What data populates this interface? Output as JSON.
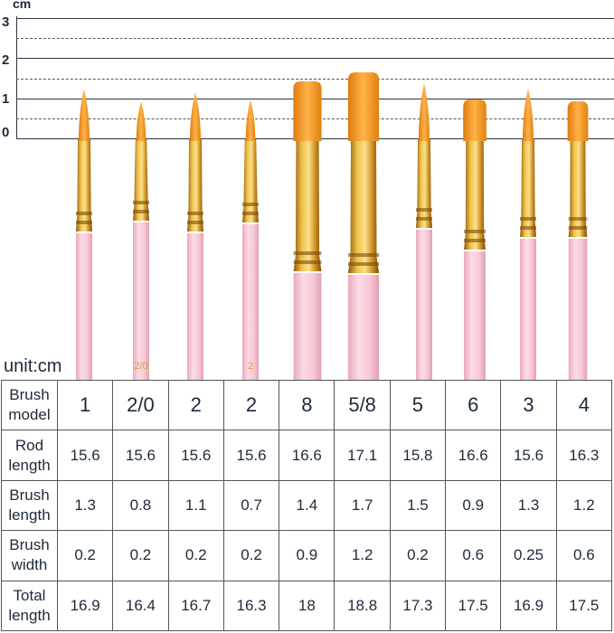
{
  "ruler": {
    "unit": "cm",
    "ticks": [
      "3",
      "2",
      "1",
      "0"
    ]
  },
  "brushes": [
    {
      "model": "1",
      "shape": "round",
      "handle_mark": ""
    },
    {
      "model": "2/0",
      "shape": "round",
      "handle_mark": "2/0"
    },
    {
      "model": "2",
      "shape": "round",
      "handle_mark": ""
    },
    {
      "model": "2",
      "shape": "round",
      "handle_mark": "2"
    },
    {
      "model": "8",
      "shape": "flat",
      "handle_mark": ""
    },
    {
      "model": "5/8",
      "shape": "flat",
      "handle_mark": ""
    },
    {
      "model": "5",
      "shape": "round",
      "handle_mark": ""
    },
    {
      "model": "6",
      "shape": "flat",
      "handle_mark": ""
    },
    {
      "model": "3",
      "shape": "round",
      "handle_mark": ""
    },
    {
      "model": "4",
      "shape": "flat",
      "handle_mark": ""
    }
  ],
  "colors": {
    "bristle": "#f39a1e",
    "ferrule": "#c98a1e",
    "handle": "#f7c9d6"
  },
  "unit_label": "unit:cm",
  "table": {
    "rows": [
      {
        "label": "Brush model",
        "values": [
          "1",
          "2/0",
          "2",
          "2",
          "8",
          "5/8",
          "5",
          "6",
          "3",
          "4"
        ]
      },
      {
        "label": "Rod length",
        "values": [
          "15.6",
          "15.6",
          "15.6",
          "15.6",
          "16.6",
          "17.1",
          "15.8",
          "16.6",
          "15.6",
          "16.3"
        ]
      },
      {
        "label": "Brush length",
        "values": [
          "1.3",
          "0.8",
          "1.1",
          "0.7",
          "1.4",
          "1.7",
          "1.5",
          "0.9",
          "1.3",
          "1.2"
        ]
      },
      {
        "label": "Brush width",
        "values": [
          "0.2",
          "0.2",
          "0.2",
          "0.2",
          "0.9",
          "1.2",
          "0.2",
          "0.6",
          "0.25",
          "0.6"
        ]
      },
      {
        "label": "Total length",
        "values": [
          "16.9",
          "16.4",
          "16.7",
          "16.3",
          "18",
          "18.8",
          "17.3",
          "17.5",
          "16.9",
          "17.5"
        ]
      }
    ]
  }
}
